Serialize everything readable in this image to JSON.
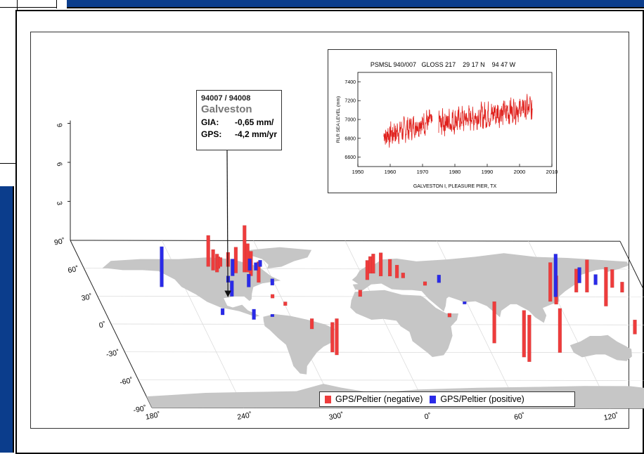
{
  "colors": {
    "negative": "#ee3c3c",
    "positive": "#2a2ae8",
    "land": "#c6c6c6",
    "slide_bar": "#0b3d8c",
    "tide_line": "#e0201c"
  },
  "callout": {
    "ids": "94007 / 94008",
    "station": "Galveston",
    "gia_label": "GIA:",
    "gia_value": "-0,65 mm/",
    "gps_label": "GPS:",
    "gps_value": "-4,2 mm/yr"
  },
  "legend": {
    "negative_label": "GPS/Peltier (negative)",
    "positive_label": "GPS/Peltier (positive)"
  },
  "chart_data": [
    {
      "type": "bar",
      "chart_kind": "3d-map-bars",
      "z_axis": {
        "ticks": [
          "3",
          "6",
          "9"
        ]
      },
      "latitude_ticks": [
        "90˚",
        "60˚",
        "30˚",
        "0˚",
        "-30˚",
        "-60˚",
        "-90˚"
      ],
      "longitude_ticks": [
        "180˚",
        "240˚",
        "300˚",
        "0˚",
        "60˚",
        "120˚",
        "180˚"
      ],
      "series": [
        {
          "name": "GPS/Peltier (negative)",
          "bars": [
            {
              "lon": 262,
              "lat": 62,
              "value": 2.4
            },
            {
              "lon": 264,
              "lat": 58,
              "value": 1.6
            },
            {
              "lon": 266,
              "lat": 56,
              "value": 1.4
            },
            {
              "lon": 268,
              "lat": 60,
              "value": 0.9
            },
            {
              "lon": 270,
              "lat": 62,
              "value": 0.7
            },
            {
              "lon": 275,
              "lat": 62,
              "value": 1.1
            },
            {
              "lon": 278,
              "lat": 55,
              "value": 2.0
            },
            {
              "lon": 284,
              "lat": 56,
              "value": 3.6
            },
            {
              "lon": 286,
              "lat": 56,
              "value": 2.2
            },
            {
              "lon": 287,
              "lat": 52,
              "value": 1.9
            },
            {
              "lon": 290,
              "lat": 45,
              "value": 1.6
            },
            {
              "lon": 294,
              "lat": 28,
              "value": 0.3
            },
            {
              "lon": 300,
              "lat": 20,
              "value": 0.3
            },
            {
              "lon": 310,
              "lat": -5,
              "value": 0.8
            },
            {
              "lon": 316,
              "lat": -30,
              "value": 2.3
            },
            {
              "lon": 318,
              "lat": -33,
              "value": 2.8
            },
            {
              "lon": 352,
              "lat": 30,
              "value": 0.5
            },
            {
              "lon": 2,
              "lat": 48,
              "value": 1.5
            },
            {
              "lon": 6,
              "lat": 55,
              "value": 1.3
            },
            {
              "lon": 8,
              "lat": 55,
              "value": 1.5
            },
            {
              "lon": 12,
              "lat": 52,
              "value": 1.8
            },
            {
              "lon": 18,
              "lat": 52,
              "value": 1.3
            },
            {
              "lon": 22,
              "lat": 50,
              "value": 1.0
            },
            {
              "lon": 26,
              "lat": 50,
              "value": 0.4
            },
            {
              "lon": 38,
              "lat": 42,
              "value": 0.3
            },
            {
              "lon": 44,
              "lat": 8,
              "value": 0.3
            },
            {
              "lon": 65,
              "lat": -20,
              "value": 3.2
            },
            {
              "lon": 80,
              "lat": -35,
              "value": 3.6
            },
            {
              "lon": 82,
              "lat": -40,
              "value": 3.6
            },
            {
              "lon": 105,
              "lat": -30,
              "value": 3.4
            },
            {
              "lon": 115,
              "lat": 25,
              "value": 3.0
            },
            {
              "lon": 118,
              "lat": 22,
              "value": 2.2
            },
            {
              "lon": 135,
              "lat": 35,
              "value": 1.8
            },
            {
              "lon": 142,
              "lat": 35,
              "value": 2.5
            },
            {
              "lon": 150,
              "lat": 20,
              "value": 3.0
            },
            {
              "lon": 160,
              "lat": 40,
              "value": 1.4
            },
            {
              "lon": 165,
              "lat": 35,
              "value": 0.8
            },
            {
              "lon": 160,
              "lat": -10,
              "value": 1.1
            },
            {
              "lon": 172,
              "lat": -15,
              "value": 1.7
            },
            {
              "lon": 175,
              "lat": -8,
              "value": 1.0
            }
          ]
        },
        {
          "name": "GPS/Peltier (positive)",
          "bars": [
            {
              "lon": 225,
              "lat": 40,
              "value": 3.1
            },
            {
              "lon": 275,
              "lat": 52,
              "value": 1.3
            },
            {
              "lon": 282,
              "lat": 40,
              "value": 1.0
            },
            {
              "lon": 288,
              "lat": 58,
              "value": 0.9
            },
            {
              "lon": 292,
              "lat": 58,
              "value": 0.6
            },
            {
              "lon": 296,
              "lat": 62,
              "value": 0.5
            },
            {
              "lon": 298,
              "lat": 42,
              "value": 0.5
            },
            {
              "lon": 270,
              "lat": 45,
              "value": 0.5
            },
            {
              "lon": 268,
              "lat": 30,
              "value": 1.2
            },
            {
              "lon": 256,
              "lat": 10,
              "value": 0.5
            },
            {
              "lon": 275,
              "lat": 5,
              "value": 0.8
            },
            {
              "lon": 288,
              "lat": 8,
              "value": 0.2
            },
            {
              "lon": 48,
              "lat": 45,
              "value": 0.6
            },
            {
              "lon": 58,
              "lat": 22,
              "value": 0.2
            },
            {
              "lon": 120,
              "lat": 30,
              "value": 3.3
            },
            {
              "lon": 140,
              "lat": 45,
              "value": 1.2
            },
            {
              "lon": 150,
              "lat": 43,
              "value": 0.8
            },
            {
              "lon": 162,
              "lat": -40,
              "value": 0.3
            }
          ]
        }
      ]
    },
    {
      "type": "line",
      "title": "PSMSL 940/007   GLOSS 217    29 17 N    94 47 W",
      "xlabel": "GALVESTON I, PLEASURE PIER, TX",
      "ylabel": "RLR SEA LEVEL (mm)",
      "xlim": [
        1950,
        2010
      ],
      "ylim": [
        6500,
        7500
      ],
      "x_ticks": [
        "1950",
        "1960",
        "1970",
        "1980",
        "1990",
        "2000",
        "2010"
      ],
      "y_ticks": [
        "6600",
        "6800",
        "7000",
        "7200",
        "7400"
      ],
      "segments": [
        {
          "start": 1958,
          "end": 1973,
          "trend_start": 6820,
          "trend_end": 6990,
          "noise": 110
        },
        {
          "start": 1975,
          "end": 2004,
          "trend_start": 6960,
          "trend_end": 7130,
          "noise": 120
        }
      ]
    }
  ]
}
